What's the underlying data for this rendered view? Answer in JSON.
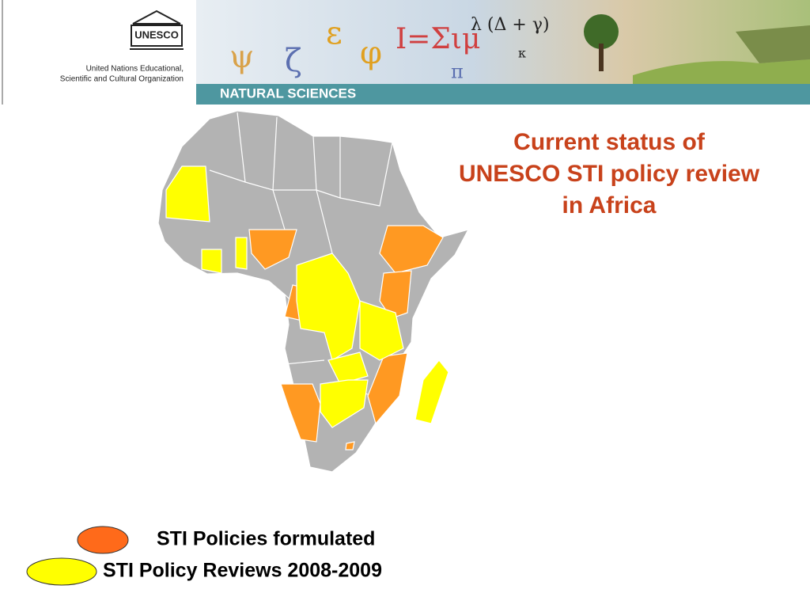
{
  "header": {
    "logo": "UNESCO",
    "organization": [
      "United Nations Educational,",
      "Scientific and Cultural Organization"
    ],
    "banner_symbols": [
      "ψ",
      "ζ",
      "ε",
      "φ",
      "I=Σιμ",
      "λ (Δ + γ)",
      "κ",
      "π"
    ],
    "section": "NATURAL SCIENCES"
  },
  "title": [
    "Current status of",
    "UNESCO STI policy review",
    "in Africa"
  ],
  "legend": [
    {
      "label": "STI Policies formulated",
      "color": "#ff6a1a"
    },
    {
      "label": "STI Policy Reviews 2008-2009",
      "color": "#ffff00"
    }
  ]
}
